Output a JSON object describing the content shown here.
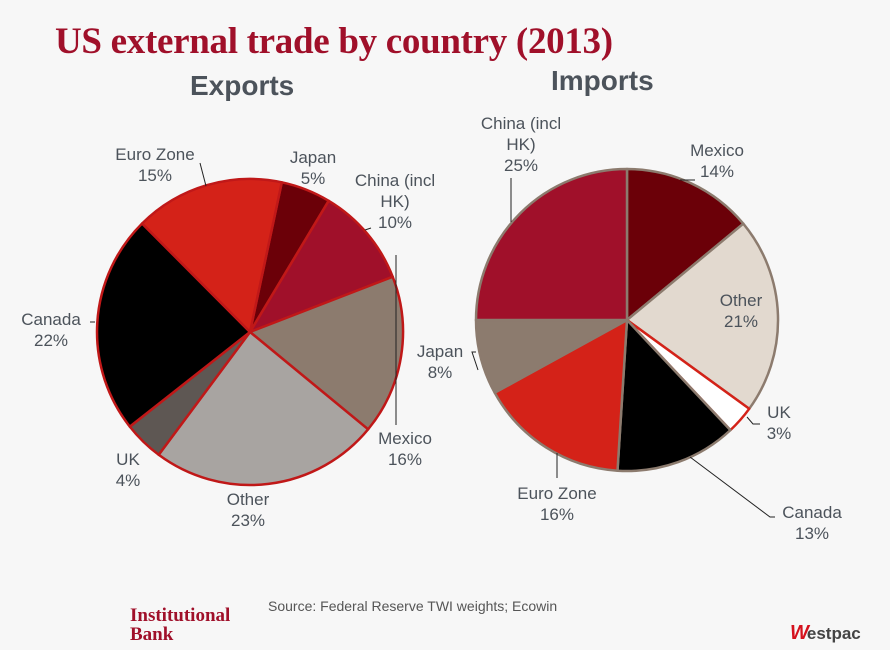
{
  "title": "US external trade by country (2013)",
  "source": "Source: Federal Reserve TWI weights; Ecowin",
  "footer": {
    "brand_line1": "Institutional",
    "brand_line2": "Bank",
    "logo_mark": "W",
    "logo_text": "estpac"
  },
  "chart_data": [
    {
      "type": "pie",
      "title": "Exports",
      "categories": [
        "Japan",
        "China (incl HK)",
        "Mexico",
        "Other",
        "UK",
        "Canada",
        "Euro Zone"
      ],
      "values": [
        5,
        10,
        16,
        23,
        4,
        22,
        15
      ],
      "unit": "%",
      "colors": [
        "#6b0008",
        "#a0102a",
        "#8c7b6e",
        "#a8a4a1",
        "#5e5753",
        "#000000",
        "#d42218"
      ],
      "start_angle_deg": 12,
      "labels": [
        {
          "line1": "Japan",
          "line2": "",
          "pct": "5%"
        },
        {
          "line1": "China (incl",
          "line2": "HK)",
          "pct": "10%"
        },
        {
          "line1": "Mexico",
          "line2": "",
          "pct": "16%"
        },
        {
          "line1": "Other",
          "line2": "",
          "pct": "23%"
        },
        {
          "line1": "UK",
          "line2": "",
          "pct": "4%"
        },
        {
          "line1": "Canada",
          "line2": "",
          "pct": "22%"
        },
        {
          "line1": "Euro Zone",
          "line2": "",
          "pct": "15%"
        }
      ]
    },
    {
      "type": "pie",
      "title": "Imports",
      "categories": [
        "Mexico",
        "Other",
        "UK",
        "Canada",
        "Euro Zone",
        "Japan",
        "China (incl HK)"
      ],
      "values": [
        14,
        21,
        3,
        13,
        16,
        8,
        25
      ],
      "unit": "%",
      "colors": [
        "#6b0008",
        "#e2d9cf",
        "#ffffff",
        "#000000",
        "#d42218",
        "#8c7b6e",
        "#a0102a"
      ],
      "start_angle_deg": 0,
      "labels": [
        {
          "line1": "Mexico",
          "line2": "",
          "pct": "14%"
        },
        {
          "line1": "Other",
          "line2": "",
          "pct": "21%"
        },
        {
          "line1": "UK",
          "line2": "",
          "pct": "3%"
        },
        {
          "line1": "Canada",
          "line2": "",
          "pct": "13%"
        },
        {
          "line1": "Euro Zone",
          "line2": "",
          "pct": "16%"
        },
        {
          "line1": "Japan",
          "line2": "",
          "pct": "8%"
        },
        {
          "line1": "China (incl",
          "line2": "HK)",
          "pct": "25%"
        }
      ]
    }
  ]
}
